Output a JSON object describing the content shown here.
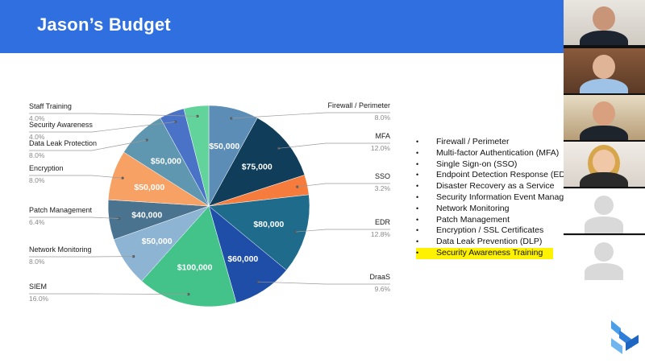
{
  "slide": {
    "title": "Jason’s Budget"
  },
  "colors": {
    "header": "#2f6fe0",
    "firewall": "#5b8db6",
    "mfa": "#0f3d5a",
    "sso": "#f57c3c",
    "edr": "#1e6b8c",
    "draas": "#1f4ea8",
    "siem": "#43c38a",
    "network_monitoring": "#8eb4d4",
    "patch_management": "#4a7390",
    "encryption": "#f8a165",
    "data_leak_protection": "#5f96b0",
    "security_awareness": "#4a73c8",
    "staff_training": "#62d49b",
    "highlight": "#fff200"
  },
  "chart_data": {
    "type": "pie",
    "title": "",
    "slices": [
      {
        "label": "Firewall / Perimeter",
        "percent": "8.0%",
        "value": 50000,
        "value_label": "$50,000",
        "color_key": "firewall"
      },
      {
        "label": "MFA",
        "percent": "12.0%",
        "value": 75000,
        "value_label": "$75,000",
        "color_key": "mfa"
      },
      {
        "label": "SSO",
        "percent": "3.2%",
        "value": 20000,
        "value_label": "",
        "color_key": "sso"
      },
      {
        "label": "EDR",
        "percent": "12.8%",
        "value": 80000,
        "value_label": "$80,000",
        "color_key": "edr"
      },
      {
        "label": "DraaS",
        "percent": "9.6%",
        "value": 60000,
        "value_label": "$60,000",
        "color_key": "draas"
      },
      {
        "label": "SIEM",
        "percent": "16.0%",
        "value": 100000,
        "value_label": "$100,000",
        "color_key": "siem"
      },
      {
        "label": "Network Monitoring",
        "percent": "8.0%",
        "value": 50000,
        "value_label": "$50,000",
        "color_key": "network_monitoring"
      },
      {
        "label": "Patch Management",
        "percent": "6.4%",
        "value": 40000,
        "value_label": "$40,000",
        "color_key": "patch_management"
      },
      {
        "label": "Encryption",
        "percent": "8.0%",
        "value": 50000,
        "value_label": "$50,000",
        "color_key": "encryption"
      },
      {
        "label": "Data Leak Protection",
        "percent": "8.0%",
        "value": 50000,
        "value_label": "$50,000",
        "color_key": "data_leak_protection"
      },
      {
        "label": "Security Awareness",
        "percent": "4.0%",
        "value": 25000,
        "value_label": "",
        "color_key": "security_awareness"
      },
      {
        "label": "Staff Training",
        "percent": "4.0%",
        "value": 25000,
        "value_label": "",
        "color_key": "staff_training"
      }
    ]
  },
  "bullets": [
    {
      "text": "Firewall / Perimeter",
      "highlighted": false
    },
    {
      "text": "Multi-factor Authentication (MFA)",
      "highlighted": false
    },
    {
      "text": "Single Sign-on (SSO)",
      "highlighted": false
    },
    {
      "text": "Endpoint Detection Response (EDR)",
      "highlighted": false
    },
    {
      "text": "Disaster Recovery as a Service",
      "highlighted": false
    },
    {
      "text": "Security Information Event Management",
      "highlighted": false
    },
    {
      "text": "Network Monitoring",
      "highlighted": false
    },
    {
      "text": "Patch Management",
      "highlighted": false
    },
    {
      "text": "Encryption / SSL Certificates",
      "highlighted": false
    },
    {
      "text": "Data Leak Prevention (DLP)",
      "highlighted": false
    },
    {
      "text": "Security Awareness Training",
      "highlighted": true
    }
  ],
  "bullet_glyph": "•",
  "video_participants": [
    {
      "type": "video",
      "icon": "participant-video-1"
    },
    {
      "type": "video",
      "icon": "participant-video-2"
    },
    {
      "type": "video",
      "icon": "participant-video-3"
    },
    {
      "type": "video",
      "icon": "participant-video-4"
    },
    {
      "type": "avatar",
      "icon": "user-avatar-icon"
    },
    {
      "type": "avatar",
      "icon": "user-avatar-icon"
    }
  ],
  "logo": {
    "icon": "brand-logo-icon"
  }
}
